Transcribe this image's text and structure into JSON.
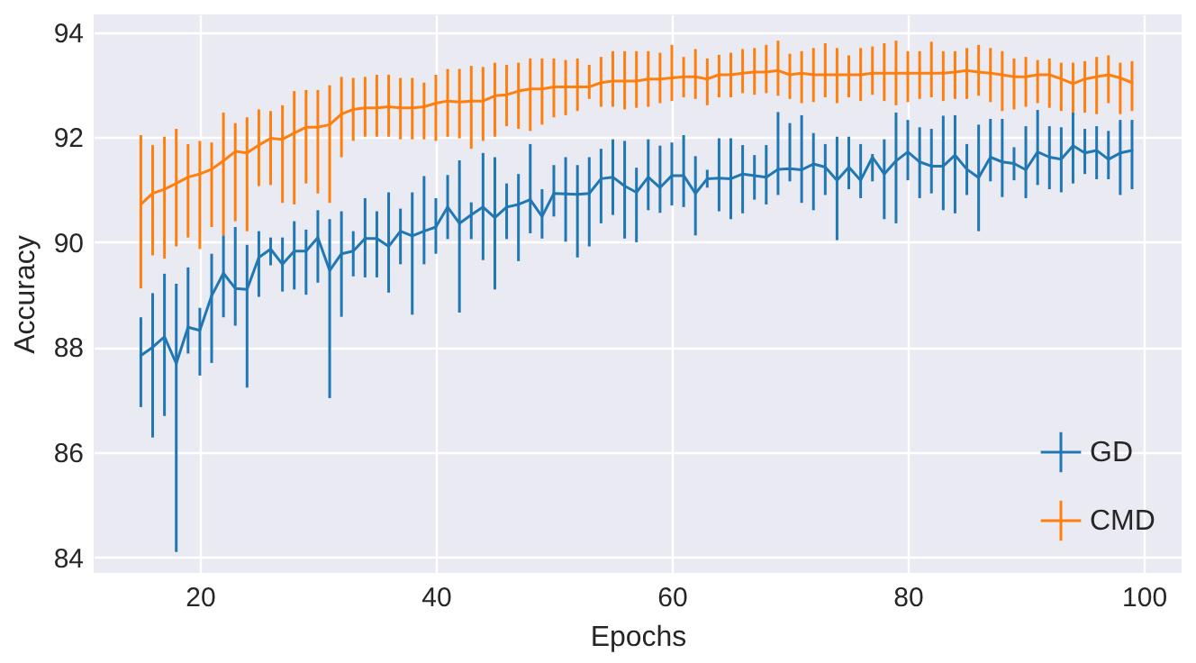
{
  "chart_data": {
    "type": "line",
    "xlabel": "Epochs",
    "ylabel": "Accuracy",
    "x": [
      15,
      16,
      17,
      18,
      19,
      20,
      21,
      22,
      23,
      24,
      25,
      26,
      27,
      28,
      29,
      30,
      31,
      32,
      33,
      34,
      35,
      36,
      37,
      38,
      39,
      40,
      41,
      42,
      43,
      44,
      45,
      46,
      47,
      48,
      49,
      50,
      51,
      52,
      53,
      54,
      55,
      56,
      57,
      58,
      59,
      60,
      61,
      62,
      63,
      64,
      65,
      66,
      67,
      68,
      69,
      70,
      71,
      72,
      73,
      74,
      75,
      76,
      77,
      78,
      79,
      80,
      81,
      82,
      83,
      84,
      85,
      86,
      87,
      88,
      89,
      90,
      91,
      92,
      93,
      94,
      95,
      96,
      97,
      98,
      99
    ],
    "xlim": [
      11,
      103.2
    ],
    "xticks": [
      20,
      40,
      60,
      80,
      100
    ],
    "ylim": [
      83.7,
      94.34
    ],
    "yticks": [
      84,
      86,
      88,
      90,
      92,
      94
    ],
    "grid": true,
    "legend": "bottom right",
    "marker": "none",
    "line_style": "solid",
    "series": [
      {
        "name": "GD",
        "color": "#1f77b4",
        "values": [
          87.84,
          88.0,
          88.2,
          87.69,
          88.38,
          88.32,
          88.98,
          89.41,
          89.12,
          89.1,
          89.71,
          89.87,
          89.58,
          89.83,
          89.83,
          90.09,
          89.46,
          89.78,
          89.83,
          90.07,
          90.07,
          89.92,
          90.21,
          90.12,
          90.21,
          90.29,
          90.67,
          90.36,
          90.52,
          90.67,
          90.47,
          90.67,
          90.72,
          90.81,
          90.49,
          90.93,
          90.92,
          90.91,
          90.93,
          91.21,
          91.24,
          91.07,
          90.95,
          91.24,
          91.04,
          91.27,
          91.27,
          90.93,
          91.21,
          91.22,
          91.21,
          91.3,
          91.27,
          91.24,
          91.39,
          91.4,
          91.38,
          91.49,
          91.43,
          91.18,
          91.43,
          91.18,
          91.62,
          91.3,
          91.55,
          91.72,
          91.53,
          91.45,
          91.45,
          91.66,
          91.39,
          91.23,
          91.62,
          91.53,
          91.5,
          91.38,
          91.72,
          91.62,
          91.58,
          91.84,
          91.7,
          91.75,
          91.58,
          91.7,
          91.75
        ],
        "errors": [
          [
            86.86,
            88.57
          ],
          [
            86.28,
            89.03
          ],
          [
            86.69,
            89.4
          ],
          [
            84.1,
            89.21
          ],
          [
            87.88,
            89.52
          ],
          [
            87.46,
            88.75
          ],
          [
            87.7,
            89.78
          ],
          [
            88.57,
            90.13
          ],
          [
            88.41,
            90.29
          ],
          [
            87.23,
            89.95
          ],
          [
            88.96,
            90.21
          ],
          [
            89.56,
            90.09
          ],
          [
            89.06,
            90.09
          ],
          [
            89.1,
            90.4
          ],
          [
            89.0,
            90.24
          ],
          [
            89.23,
            90.61
          ],
          [
            87.03,
            90.44
          ],
          [
            88.58,
            90.59
          ],
          [
            89.35,
            90.21
          ],
          [
            89.33,
            90.84
          ],
          [
            89.33,
            90.59
          ],
          [
            89.04,
            90.95
          ],
          [
            89.58,
            90.64
          ],
          [
            88.62,
            90.95
          ],
          [
            89.58,
            91.26
          ],
          [
            89.78,
            90.84
          ],
          [
            90.06,
            91.28
          ],
          [
            88.66,
            91.56
          ],
          [
            90.06,
            90.76
          ],
          [
            89.66,
            91.7
          ],
          [
            89.1,
            91.62
          ],
          [
            90.06,
            91.12
          ],
          [
            89.64,
            91.3
          ],
          [
            90.17,
            91.87
          ],
          [
            90.07,
            91.01
          ],
          [
            90.49,
            91.47
          ],
          [
            90.01,
            91.62
          ],
          [
            89.71,
            91.47
          ],
          [
            89.92,
            91.62
          ],
          [
            90.36,
            91.78
          ],
          [
            90.52,
            91.96
          ],
          [
            90.07,
            91.93
          ],
          [
            90.0,
            91.42
          ],
          [
            90.61,
            91.96
          ],
          [
            90.56,
            91.84
          ],
          [
            90.7,
            91.9
          ],
          [
            90.67,
            92.04
          ],
          [
            90.13,
            91.64
          ],
          [
            91.04,
            91.38
          ],
          [
            90.59,
            91.98
          ],
          [
            90.44,
            91.98
          ],
          [
            90.55,
            91.85
          ],
          [
            90.81,
            91.66
          ],
          [
            90.72,
            91.85
          ],
          [
            90.9,
            92.48
          ],
          [
            91.16,
            92.27
          ],
          [
            90.75,
            92.42
          ],
          [
            90.61,
            92.08
          ],
          [
            90.9,
            91.87
          ],
          [
            90.04,
            92.01
          ],
          [
            91.01,
            92.01
          ],
          [
            90.84,
            91.87
          ],
          [
            91.16,
            91.68
          ],
          [
            90.44,
            91.96
          ],
          [
            90.36,
            92.47
          ],
          [
            91.18,
            92.33
          ],
          [
            90.84,
            92.19
          ],
          [
            90.93,
            92.16
          ],
          [
            90.61,
            92.41
          ],
          [
            90.55,
            92.42
          ],
          [
            90.9,
            91.87
          ],
          [
            90.21,
            92.24
          ],
          [
            91.16,
            92.35
          ],
          [
            90.86,
            92.35
          ],
          [
            91.18,
            91.81
          ],
          [
            90.84,
            92.21
          ],
          [
            91.09,
            92.52
          ],
          [
            91.01,
            92.21
          ],
          [
            90.95,
            92.19
          ],
          [
            91.12,
            92.47
          ],
          [
            91.3,
            92.16
          ],
          [
            91.2,
            92.21
          ],
          [
            91.2,
            92.12
          ],
          [
            90.9,
            92.33
          ],
          [
            91.01,
            92.33
          ]
        ]
      },
      {
        "name": "CMD",
        "color": "#ff7f0e",
        "values": [
          90.72,
          90.93,
          91.01,
          91.12,
          91.24,
          91.3,
          91.39,
          91.55,
          91.73,
          91.7,
          91.85,
          91.98,
          91.96,
          92.08,
          92.19,
          92.19,
          92.24,
          92.44,
          92.53,
          92.56,
          92.56,
          92.58,
          92.56,
          92.56,
          92.58,
          92.65,
          92.69,
          92.67,
          92.69,
          92.69,
          92.79,
          92.81,
          92.88,
          92.92,
          92.92,
          92.96,
          92.96,
          92.96,
          92.96,
          93.04,
          93.07,
          93.07,
          93.07,
          93.11,
          93.11,
          93.13,
          93.15,
          93.15,
          93.11,
          93.19,
          93.19,
          93.22,
          93.24,
          93.24,
          93.27,
          93.19,
          93.22,
          93.19,
          93.19,
          93.19,
          93.19,
          93.19,
          93.22,
          93.22,
          93.22,
          93.22,
          93.22,
          93.22,
          93.22,
          93.24,
          93.27,
          93.24,
          93.22,
          93.19,
          93.15,
          93.15,
          93.19,
          93.19,
          93.11,
          93.02,
          93.11,
          93.15,
          93.19,
          93.13,
          93.04
        ],
        "errors": [
          [
            89.12,
            92.04
          ],
          [
            89.75,
            91.85
          ],
          [
            89.69,
            92.01
          ],
          [
            89.92,
            92.16
          ],
          [
            90.09,
            91.87
          ],
          [
            89.87,
            91.93
          ],
          [
            90.29,
            91.9
          ],
          [
            90.13,
            92.47
          ],
          [
            90.4,
            92.27
          ],
          [
            90.21,
            92.38
          ],
          [
            91.07,
            92.53
          ],
          [
            91.09,
            92.5
          ],
          [
            90.75,
            92.61
          ],
          [
            90.72,
            92.88
          ],
          [
            91.12,
            92.9
          ],
          [
            90.93,
            92.9
          ],
          [
            90.75,
            92.99
          ],
          [
            91.62,
            93.15
          ],
          [
            91.93,
            93.13
          ],
          [
            92.01,
            93.15
          ],
          [
            92.01,
            93.19
          ],
          [
            92.01,
            93.19
          ],
          [
            91.96,
            93.13
          ],
          [
            91.96,
            93.13
          ],
          [
            91.96,
            93.04
          ],
          [
            91.93,
            93.19
          ],
          [
            92.01,
            93.3
          ],
          [
            91.98,
            93.3
          ],
          [
            91.78,
            93.36
          ],
          [
            91.93,
            93.34
          ],
          [
            92.01,
            93.42
          ],
          [
            92.21,
            93.38
          ],
          [
            92.16,
            93.42
          ],
          [
            92.12,
            93.5
          ],
          [
            92.24,
            93.5
          ],
          [
            92.38,
            93.5
          ],
          [
            92.42,
            93.47
          ],
          [
            92.5,
            93.5
          ],
          [
            92.73,
            93.38
          ],
          [
            92.58,
            93.53
          ],
          [
            92.58,
            93.64
          ],
          [
            92.53,
            93.64
          ],
          [
            92.56,
            93.64
          ],
          [
            92.58,
            93.64
          ],
          [
            92.65,
            93.61
          ],
          [
            92.69,
            93.76
          ],
          [
            92.76,
            93.53
          ],
          [
            92.73,
            93.68
          ],
          [
            92.61,
            93.5
          ],
          [
            92.76,
            93.57
          ],
          [
            92.76,
            93.61
          ],
          [
            92.84,
            93.68
          ],
          [
            92.81,
            93.7
          ],
          [
            92.84,
            93.76
          ],
          [
            92.79,
            93.84
          ],
          [
            92.73,
            93.59
          ],
          [
            92.65,
            93.64
          ],
          [
            92.67,
            93.7
          ],
          [
            92.76,
            93.79
          ],
          [
            92.65,
            93.7
          ],
          [
            92.76,
            93.56
          ],
          [
            92.69,
            93.7
          ],
          [
            92.81,
            93.73
          ],
          [
            92.69,
            93.79
          ],
          [
            92.61,
            93.84
          ],
          [
            92.67,
            93.64
          ],
          [
            92.73,
            93.64
          ],
          [
            92.76,
            93.82
          ],
          [
            92.69,
            93.64
          ],
          [
            92.73,
            93.64
          ],
          [
            92.73,
            93.7
          ],
          [
            92.79,
            93.76
          ],
          [
            92.67,
            93.7
          ],
          [
            92.5,
            93.64
          ],
          [
            92.53,
            93.5
          ],
          [
            92.58,
            93.53
          ],
          [
            92.65,
            93.47
          ],
          [
            92.56,
            93.5
          ],
          [
            92.5,
            93.42
          ],
          [
            92.47,
            93.42
          ],
          [
            92.47,
            93.45
          ],
          [
            92.44,
            93.53
          ],
          [
            92.65,
            93.56
          ],
          [
            92.44,
            93.42
          ],
          [
            92.5,
            93.45
          ]
        ]
      }
    ]
  }
}
